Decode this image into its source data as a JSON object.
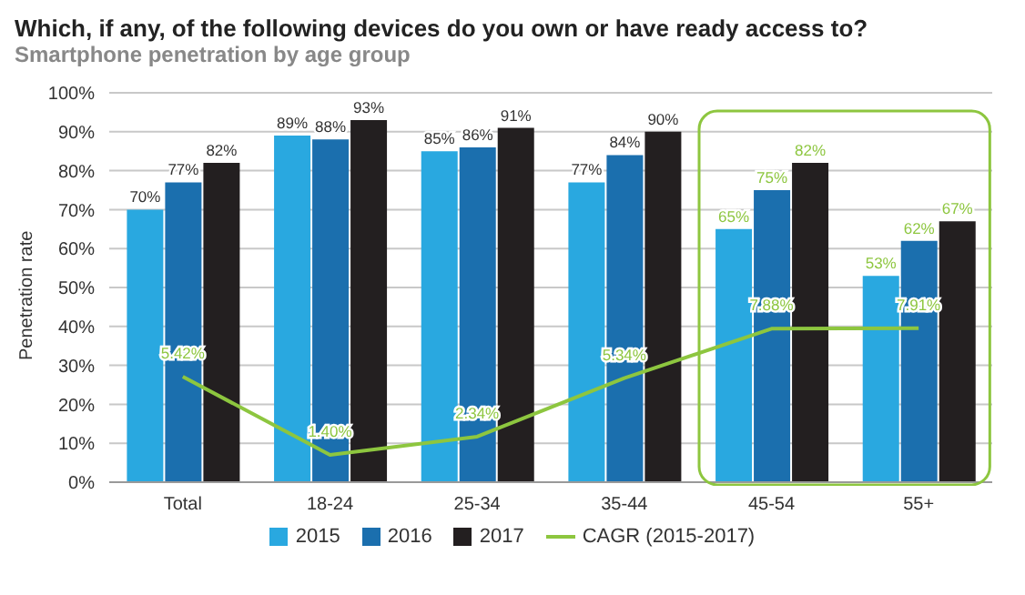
{
  "chart_data": {
    "type": "bar",
    "title": "Which, if any, of the following devices do you own or have ready access to?",
    "subtitle": "Smartphone penetration by age group",
    "ylabel": "Penetration rate",
    "categories": [
      "Total",
      "18-24",
      "25-34",
      "35-44",
      "45-54",
      "55+"
    ],
    "series": [
      {
        "name": "2015",
        "color": "#29a8e0",
        "values": [
          70,
          89,
          85,
          77,
          65,
          53
        ],
        "value_labels": [
          "70%",
          "89%",
          "85%",
          "77%",
          "65%",
          "53%"
        ]
      },
      {
        "name": "2016",
        "color": "#1b6fae",
        "values": [
          77,
          88,
          86,
          84,
          75,
          62
        ],
        "value_labels": [
          "77%",
          "88%",
          "86%",
          "84%",
          "75%",
          "62%"
        ]
      },
      {
        "name": "2017",
        "color": "#231f20",
        "values": [
          82,
          93,
          91,
          90,
          82,
          67
        ],
        "value_labels": [
          "82%",
          "93%",
          "91%",
          "90%",
          "82%",
          "67%"
        ]
      },
      {
        "name": "CAGR (2015-2017)",
        "type": "line",
        "axis": "y2",
        "color": "#8dc63f",
        "values": [
          5.42,
          1.4,
          2.34,
          5.34,
          7.88,
          7.91
        ],
        "value_labels": [
          "5.42%",
          "1.40%",
          "2.34%",
          "5.34%",
          "7.88%",
          "7.91%"
        ]
      }
    ],
    "ylim": [
      0,
      100
    ],
    "yticks": [
      {
        "value": 0,
        "label": "0%"
      },
      {
        "value": 10,
        "label": "10%"
      },
      {
        "value": 20,
        "label": "20%"
      },
      {
        "value": 30,
        "label": "30%"
      },
      {
        "value": 40,
        "label": "40%"
      },
      {
        "value": 50,
        "label": "50%"
      },
      {
        "value": 60,
        "label": "60%"
      },
      {
        "value": 70,
        "label": "70%"
      },
      {
        "value": 80,
        "label": "80%"
      },
      {
        "value": 90,
        "label": "90%"
      },
      {
        "value": 100,
        "label": "100%"
      }
    ],
    "y2lim": [
      0,
      20
    ],
    "grid": "y",
    "legend": "bottom",
    "marker": "none"
  }
}
